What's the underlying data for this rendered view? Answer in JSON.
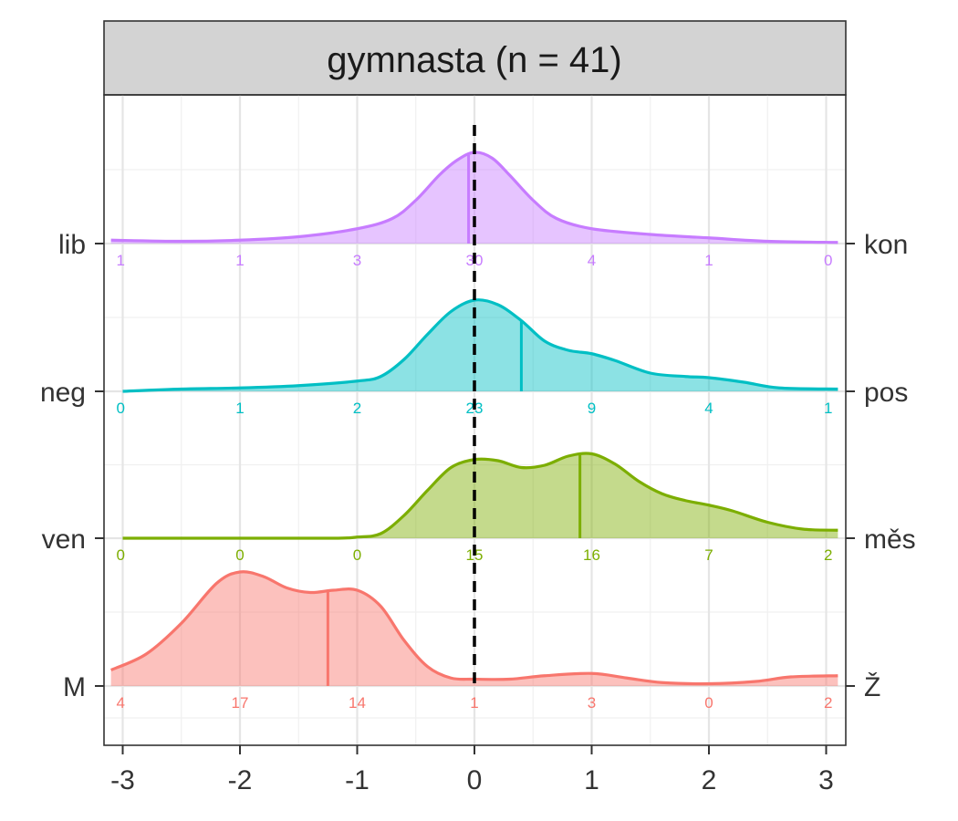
{
  "chart_data": {
    "type": "area",
    "title": "gymnasta (n = 41)",
    "xlabel": "",
    "ylabel": "",
    "xlim": [
      -3.1,
      3.1
    ],
    "x_ticks": [
      "-3",
      "-2",
      "-1",
      "0",
      "1",
      "2",
      "3"
    ],
    "count_positions": [
      -3,
      -2,
      -1,
      0,
      1,
      2,
      3
    ],
    "reference_line": 0,
    "grid": true,
    "series": [
      {
        "left_label": "M",
        "right_label": "Ž",
        "color": "#F8766D",
        "counts": [
          "4",
          "17",
          "14",
          "1",
          "3",
          "0",
          "2"
        ],
        "median": -1.25,
        "density": [
          [
            -3.1,
            0.14
          ],
          [
            -2.8,
            0.28
          ],
          [
            -2.5,
            0.55
          ],
          [
            -2.2,
            0.9
          ],
          [
            -2.0,
            1.0
          ],
          [
            -1.8,
            0.96
          ],
          [
            -1.6,
            0.86
          ],
          [
            -1.4,
            0.82
          ],
          [
            -1.2,
            0.84
          ],
          [
            -1.0,
            0.84
          ],
          [
            -0.8,
            0.7
          ],
          [
            -0.6,
            0.4
          ],
          [
            -0.4,
            0.17
          ],
          [
            -0.2,
            0.07
          ],
          [
            0.0,
            0.06
          ],
          [
            0.3,
            0.06
          ],
          [
            0.6,
            0.09
          ],
          [
            1.0,
            0.11
          ],
          [
            1.3,
            0.07
          ],
          [
            1.6,
            0.03
          ],
          [
            2.0,
            0.02
          ],
          [
            2.4,
            0.04
          ],
          [
            2.7,
            0.08
          ],
          [
            3.1,
            0.09
          ]
        ]
      },
      {
        "left_label": "ven",
        "right_label": "měs",
        "color": "#7CAE00",
        "counts": [
          "0",
          "0",
          "0",
          "15",
          "16",
          "7",
          "2"
        ],
        "median": 0.9,
        "density": [
          [
            -3.0,
            0.0
          ],
          [
            -2.0,
            0.0
          ],
          [
            -1.2,
            0.0
          ],
          [
            -1.0,
            0.01
          ],
          [
            -0.8,
            0.04
          ],
          [
            -0.6,
            0.2
          ],
          [
            -0.4,
            0.42
          ],
          [
            -0.2,
            0.62
          ],
          [
            0.0,
            0.69
          ],
          [
            0.2,
            0.68
          ],
          [
            0.4,
            0.62
          ],
          [
            0.6,
            0.64
          ],
          [
            0.8,
            0.72
          ],
          [
            1.0,
            0.74
          ],
          [
            1.2,
            0.65
          ],
          [
            1.4,
            0.5
          ],
          [
            1.6,
            0.39
          ],
          [
            1.8,
            0.33
          ],
          [
            2.0,
            0.29
          ],
          [
            2.2,
            0.24
          ],
          [
            2.5,
            0.14
          ],
          [
            2.8,
            0.08
          ],
          [
            3.1,
            0.07
          ]
        ]
      },
      {
        "left_label": "neg",
        "right_label": "pos",
        "color": "#00BFC4",
        "counts": [
          "0",
          "1",
          "2",
          "23",
          "9",
          "4",
          "1"
        ],
        "median": 0.4,
        "density": [
          [
            -3.0,
            0.0
          ],
          [
            -2.5,
            0.02
          ],
          [
            -2.0,
            0.03
          ],
          [
            -1.5,
            0.05
          ],
          [
            -1.0,
            0.09
          ],
          [
            -0.8,
            0.13
          ],
          [
            -0.6,
            0.28
          ],
          [
            -0.4,
            0.5
          ],
          [
            -0.2,
            0.7
          ],
          [
            0.0,
            0.8
          ],
          [
            0.2,
            0.76
          ],
          [
            0.4,
            0.62
          ],
          [
            0.6,
            0.44
          ],
          [
            0.8,
            0.36
          ],
          [
            1.0,
            0.33
          ],
          [
            1.2,
            0.27
          ],
          [
            1.5,
            0.16
          ],
          [
            1.8,
            0.13
          ],
          [
            2.0,
            0.12
          ],
          [
            2.3,
            0.08
          ],
          [
            2.6,
            0.03
          ],
          [
            3.1,
            0.02
          ]
        ]
      },
      {
        "left_label": "lib",
        "right_label": "kon",
        "color": "#C77CFF",
        "counts": [
          "1",
          "1",
          "3",
          "30",
          "4",
          "1",
          "0"
        ],
        "median": -0.05,
        "density": [
          [
            -3.1,
            0.03
          ],
          [
            -2.5,
            0.02
          ],
          [
            -2.0,
            0.03
          ],
          [
            -1.5,
            0.06
          ],
          [
            -1.0,
            0.13
          ],
          [
            -0.7,
            0.22
          ],
          [
            -0.5,
            0.38
          ],
          [
            -0.3,
            0.6
          ],
          [
            -0.15,
            0.73
          ],
          [
            0.0,
            0.8
          ],
          [
            0.15,
            0.75
          ],
          [
            0.3,
            0.6
          ],
          [
            0.5,
            0.38
          ],
          [
            0.7,
            0.22
          ],
          [
            1.0,
            0.13
          ],
          [
            1.5,
            0.08
          ],
          [
            2.0,
            0.05
          ],
          [
            2.5,
            0.02
          ],
          [
            3.1,
            0.01
          ]
        ]
      }
    ]
  }
}
